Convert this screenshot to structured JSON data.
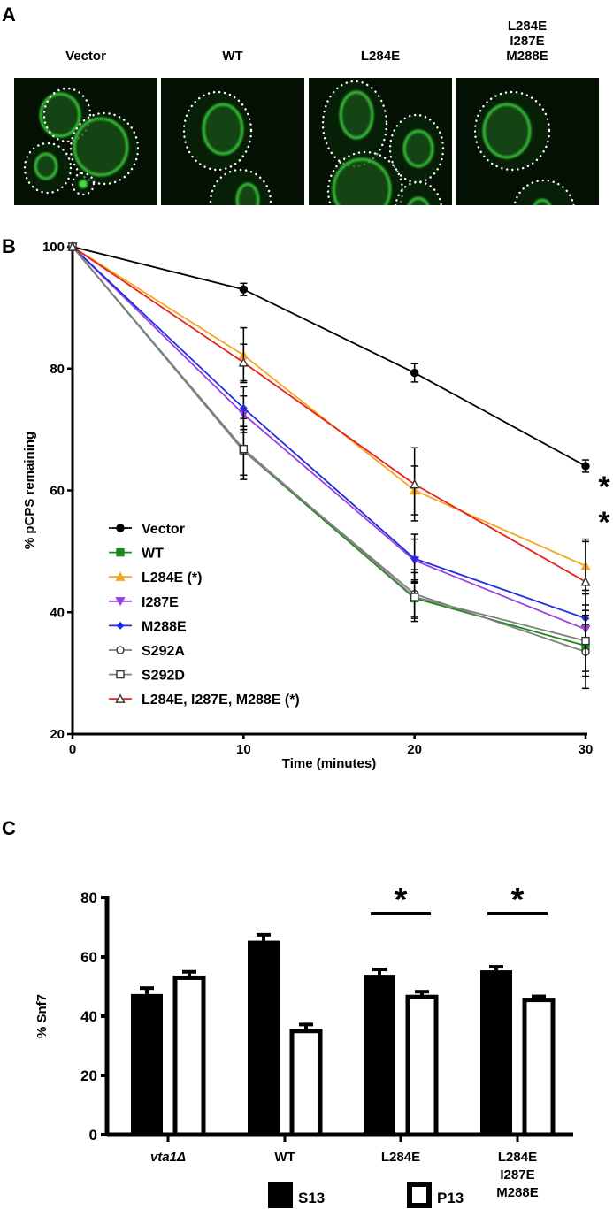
{
  "panel_a": {
    "letter": "A",
    "images": [
      {
        "label": [
          "Vector"
        ]
      },
      {
        "label": [
          "WT"
        ]
      },
      {
        "label": [
          "L284E"
        ]
      },
      {
        "label": [
          "L284E",
          "I287E",
          "M288E"
        ]
      }
    ]
  },
  "chart_data": [
    {
      "panel": "B",
      "type": "line",
      "xlabel": "Time (minutes)",
      "ylabel": "% pCPS remaining",
      "xlim": [
        0,
        30
      ],
      "ylim": [
        20,
        100
      ],
      "xticks": [
        "0",
        "10",
        "20",
        "30"
      ],
      "yticks": [
        "20",
        "40",
        "60",
        "80",
        "100"
      ],
      "x": [
        0,
        10,
        20,
        30
      ],
      "legend_position": "bottom-left",
      "annotations": [
        "*",
        "*"
      ],
      "series": [
        {
          "name": "Vector",
          "color": "#000000",
          "marker": "circle-filled",
          "values": [
            100,
            93,
            79.3,
            64
          ],
          "err": [
            0,
            1,
            1.5,
            1
          ]
        },
        {
          "name": "WT",
          "color": "#1a8a1a",
          "marker": "square-filled",
          "values": [
            100,
            66.5,
            42.3,
            34.5
          ],
          "err": [
            0,
            4,
            3,
            5
          ]
        },
        {
          "name": "L284E (*)",
          "color": "#f5a623",
          "marker": "triangle-filled",
          "values": [
            100,
            82.2,
            60,
            47.6
          ],
          "err": [
            0,
            4.5,
            4,
            4
          ]
        },
        {
          "name": "I287E",
          "color": "#9b3fe0",
          "marker": "triangle-down-filled",
          "values": [
            100,
            72.5,
            48.5,
            37.2
          ],
          "err": [
            0,
            3,
            3.5,
            4
          ]
        },
        {
          "name": "M288E",
          "color": "#1f2fe0",
          "marker": "diamond-filled",
          "values": [
            100,
            73.5,
            48.8,
            39
          ],
          "err": [
            0,
            3.5,
            4,
            4
          ]
        },
        {
          "name": "S292A",
          "color": "#808080",
          "marker": "circle-open",
          "values": [
            100,
            66.5,
            43,
            33.5
          ],
          "err": [
            0,
            4,
            4,
            6
          ]
        },
        {
          "name": "S292D",
          "color": "#808080",
          "marker": "square-open",
          "values": [
            100,
            66.8,
            42.5,
            35.3
          ],
          "err": [
            0,
            5,
            4,
            5
          ]
        },
        {
          "name": "L284E, I287E, M288E (*)",
          "color": "#e8231c",
          "marker": "triangle-open",
          "values": [
            100,
            81,
            61,
            45
          ],
          "err": [
            0,
            3,
            6,
            7
          ]
        }
      ]
    },
    {
      "panel": "C",
      "type": "bar",
      "ylabel": "% Snf7",
      "ylim": [
        0,
        80
      ],
      "yticks": [
        "0",
        "20",
        "40",
        "60",
        "80"
      ],
      "categories": [
        [
          "vta1Δ"
        ],
        [
          "WT"
        ],
        [
          "L284E"
        ],
        [
          "L284E",
          "I287E",
          "M288E"
        ]
      ],
      "series": [
        {
          "name": "S13",
          "fill": "#000000",
          "values": [
            47.5,
            65.5,
            54,
            55.5
          ],
          "err": [
            2,
            2,
            1.8,
            1.2
          ]
        },
        {
          "name": "P13",
          "fill": "#ffffff",
          "values": [
            53,
            35,
            46.5,
            45.5
          ],
          "err": [
            2,
            2.2,
            1.8,
            1.2
          ]
        }
      ],
      "significance": [
        {
          "category": 2,
          "label": "*"
        },
        {
          "category": 3,
          "label": "*"
        }
      ],
      "legend_position": "bottom"
    }
  ],
  "letters": {
    "b": "B",
    "c": "C"
  }
}
